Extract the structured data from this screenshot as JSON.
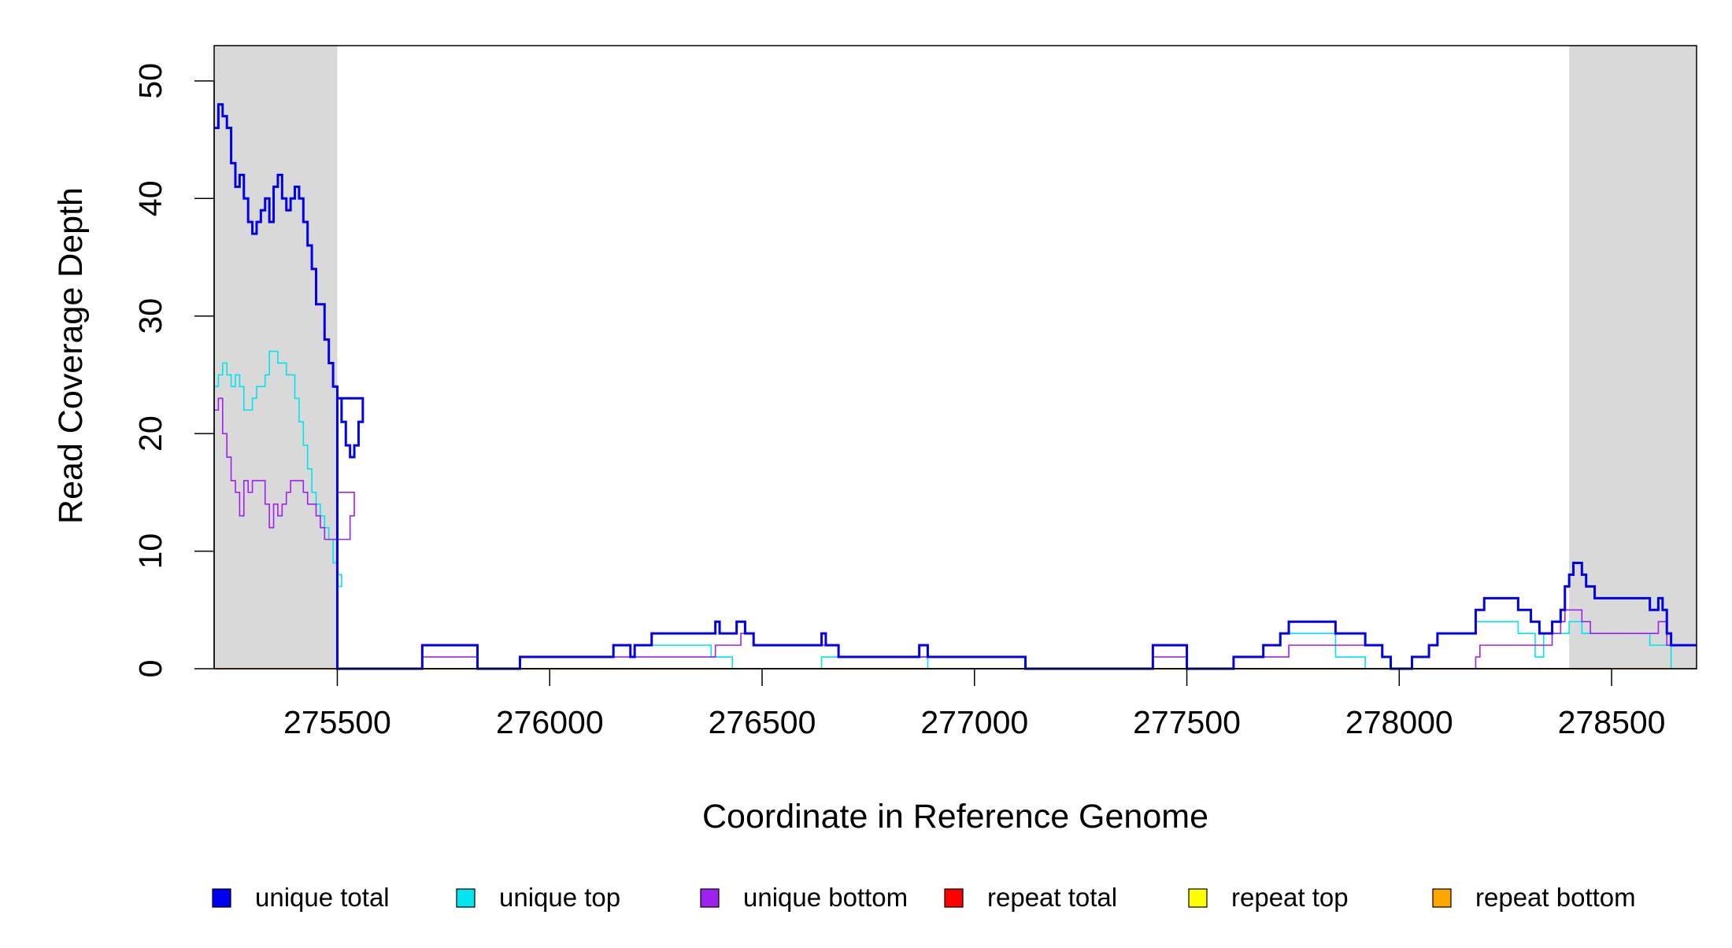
{
  "chart_data": {
    "type": "line",
    "title": "",
    "xlabel": "Coordinate in Reference Genome",
    "ylabel": "Read Coverage Depth",
    "xlim": [
      275210,
      278700
    ],
    "ylim": [
      0,
      53
    ],
    "x_ticks": [
      275500,
      276000,
      276500,
      277000,
      277500,
      278000,
      278500
    ],
    "x_tick_labels": [
      "275500",
      "276000",
      "276500",
      "277000",
      "277500",
      "278000",
      "278500"
    ],
    "y_ticks": [
      0,
      10,
      20,
      30,
      40,
      50
    ],
    "y_tick_labels": [
      "0",
      "10",
      "20",
      "30",
      "40",
      "50"
    ],
    "shaded_regions": [
      [
        275210,
        275500
      ],
      [
        278400,
        278700
      ]
    ],
    "shade_color": "#d9d9d9",
    "grid": false,
    "legend_position": "bottom",
    "series": [
      {
        "name": "unique total",
        "color": "#0000ee",
        "points": [
          [
            275210,
            46
          ],
          [
            275220,
            48
          ],
          [
            275230,
            47
          ],
          [
            275240,
            46
          ],
          [
            275250,
            43
          ],
          [
            275260,
            41
          ],
          [
            275270,
            42
          ],
          [
            275280,
            40
          ],
          [
            275290,
            38
          ],
          [
            275300,
            37
          ],
          [
            275310,
            38
          ],
          [
            275320,
            39
          ],
          [
            275330,
            40
          ],
          [
            275340,
            38
          ],
          [
            275350,
            41
          ],
          [
            275360,
            42
          ],
          [
            275370,
            40
          ],
          [
            275380,
            39
          ],
          [
            275390,
            40
          ],
          [
            275400,
            41
          ],
          [
            275410,
            40
          ],
          [
            275420,
            38
          ],
          [
            275430,
            36
          ],
          [
            275440,
            34
          ],
          [
            275450,
            31
          ],
          [
            275460,
            31
          ],
          [
            275470,
            28
          ],
          [
            275480,
            26
          ],
          [
            275490,
            24
          ],
          [
            275500,
            23
          ],
          [
            275510,
            21
          ],
          [
            275520,
            19
          ],
          [
            275530,
            18
          ],
          [
            275540,
            19
          ],
          [
            275550,
            21
          ],
          [
            275560,
            23
          ],
          [
            275500,
            0
          ],
          [
            275700,
            2
          ],
          [
            275830,
            0
          ],
          [
            275930,
            1
          ],
          [
            276150,
            2
          ],
          [
            276190,
            1
          ],
          [
            276200,
            2
          ],
          [
            276240,
            3
          ],
          [
            276390,
            4
          ],
          [
            276400,
            3
          ],
          [
            276440,
            4
          ],
          [
            276460,
            3
          ],
          [
            276480,
            2
          ],
          [
            276640,
            3
          ],
          [
            276650,
            2
          ],
          [
            276680,
            1
          ],
          [
            276870,
            2
          ],
          [
            276890,
            1
          ],
          [
            277120,
            0
          ],
          [
            277420,
            2
          ],
          [
            277500,
            0
          ],
          [
            277610,
            1
          ],
          [
            277680,
            2
          ],
          [
            277720,
            3
          ],
          [
            277740,
            4
          ],
          [
            277850,
            3
          ],
          [
            277920,
            2
          ],
          [
            277960,
            1
          ],
          [
            277980,
            0
          ],
          [
            278030,
            1
          ],
          [
            278070,
            2
          ],
          [
            278090,
            3
          ],
          [
            278180,
            5
          ],
          [
            278200,
            6
          ],
          [
            278280,
            5
          ],
          [
            278310,
            4
          ],
          [
            278330,
            3
          ],
          [
            278360,
            4
          ],
          [
            278380,
            5
          ],
          [
            278390,
            7
          ],
          [
            278400,
            8
          ],
          [
            278410,
            9
          ],
          [
            278430,
            8
          ],
          [
            278440,
            7
          ],
          [
            278460,
            6
          ],
          [
            278590,
            5
          ],
          [
            278610,
            6
          ],
          [
            278620,
            5
          ],
          [
            278630,
            3
          ],
          [
            278640,
            2
          ],
          [
            278700,
            2
          ]
        ]
      },
      {
        "name": "unique top",
        "color": "#00e5ee",
        "points": [
          [
            275210,
            24
          ],
          [
            275220,
            25
          ],
          [
            275230,
            26
          ],
          [
            275240,
            25
          ],
          [
            275250,
            24
          ],
          [
            275260,
            25
          ],
          [
            275270,
            24
          ],
          [
            275280,
            22
          ],
          [
            275300,
            23
          ],
          [
            275310,
            24
          ],
          [
            275330,
            25
          ],
          [
            275340,
            27
          ],
          [
            275360,
            26
          ],
          [
            275380,
            25
          ],
          [
            275400,
            23
          ],
          [
            275410,
            21
          ],
          [
            275420,
            19
          ],
          [
            275430,
            17
          ],
          [
            275440,
            15
          ],
          [
            275450,
            14
          ],
          [
            275460,
            13
          ],
          [
            275470,
            12
          ],
          [
            275480,
            11
          ],
          [
            275490,
            9
          ],
          [
            275500,
            7
          ],
          [
            275510,
            8
          ],
          [
            275500,
            0
          ],
          [
            275700,
            2
          ],
          [
            275830,
            0
          ],
          [
            275930,
            1
          ],
          [
            276150,
            2
          ],
          [
            276190,
            1
          ],
          [
            276200,
            2
          ],
          [
            276380,
            1
          ],
          [
            276430,
            0
          ],
          [
            276640,
            1
          ],
          [
            276680,
            1
          ],
          [
            276870,
            1
          ],
          [
            276890,
            0
          ],
          [
            277120,
            0
          ],
          [
            277420,
            2
          ],
          [
            277500,
            0
          ],
          [
            277610,
            1
          ],
          [
            277680,
            2
          ],
          [
            277720,
            3
          ],
          [
            277740,
            3
          ],
          [
            277850,
            1
          ],
          [
            277920,
            0
          ],
          [
            277980,
            0
          ],
          [
            278030,
            1
          ],
          [
            278070,
            2
          ],
          [
            278090,
            3
          ],
          [
            278180,
            4
          ],
          [
            278280,
            3
          ],
          [
            278320,
            1
          ],
          [
            278340,
            3
          ],
          [
            278380,
            3
          ],
          [
            278390,
            3
          ],
          [
            278400,
            4
          ],
          [
            278430,
            3
          ],
          [
            278460,
            3
          ],
          [
            278590,
            2
          ],
          [
            278620,
            2
          ],
          [
            278640,
            0
          ],
          [
            278700,
            0
          ]
        ]
      },
      {
        "name": "unique bottom",
        "color": "#a020f0",
        "points": [
          [
            275210,
            22
          ],
          [
            275220,
            23
          ],
          [
            275230,
            20
          ],
          [
            275240,
            18
          ],
          [
            275250,
            16
          ],
          [
            275260,
            15
          ],
          [
            275270,
            13
          ],
          [
            275280,
            16
          ],
          [
            275290,
            15
          ],
          [
            275300,
            16
          ],
          [
            275330,
            14
          ],
          [
            275340,
            12
          ],
          [
            275350,
            14
          ],
          [
            275360,
            13
          ],
          [
            275370,
            14
          ],
          [
            275380,
            15
          ],
          [
            275390,
            16
          ],
          [
            275420,
            15
          ],
          [
            275430,
            14
          ],
          [
            275450,
            13
          ],
          [
            275460,
            12
          ],
          [
            275470,
            11
          ],
          [
            275480,
            11
          ],
          [
            275520,
            11
          ],
          [
            275530,
            13
          ],
          [
            275540,
            15
          ],
          [
            275500,
            0
          ],
          [
            275700,
            1
          ],
          [
            275830,
            0
          ],
          [
            275930,
            1
          ],
          [
            276150,
            1
          ],
          [
            276240,
            1
          ],
          [
            276390,
            2
          ],
          [
            276450,
            3
          ],
          [
            276480,
            2
          ],
          [
            276640,
            2
          ],
          [
            276680,
            1
          ],
          [
            276870,
            1
          ],
          [
            277120,
            0
          ],
          [
            277420,
            1
          ],
          [
            277500,
            0
          ],
          [
            277610,
            1
          ],
          [
            277720,
            1
          ],
          [
            277740,
            2
          ],
          [
            277920,
            2
          ],
          [
            277960,
            1
          ],
          [
            277980,
            0
          ],
          [
            278180,
            1
          ],
          [
            278190,
            2
          ],
          [
            278310,
            2
          ],
          [
            278330,
            2
          ],
          [
            278360,
            3
          ],
          [
            278380,
            4
          ],
          [
            278390,
            5
          ],
          [
            278430,
            4
          ],
          [
            278450,
            3
          ],
          [
            278590,
            3
          ],
          [
            278610,
            4
          ],
          [
            278630,
            2
          ],
          [
            278700,
            2
          ]
        ]
      },
      {
        "name": "repeat total",
        "color": "#ff0000",
        "points": [
          [
            275210,
            0
          ],
          [
            278700,
            0
          ]
        ]
      },
      {
        "name": "repeat top",
        "color": "#ffff00",
        "points": [
          [
            275210,
            0
          ],
          [
            278700,
            0
          ]
        ]
      },
      {
        "name": "repeat bottom",
        "color": "#ffa500",
        "points": [
          [
            275210,
            0
          ],
          [
            278700,
            0
          ]
        ]
      }
    ]
  }
}
